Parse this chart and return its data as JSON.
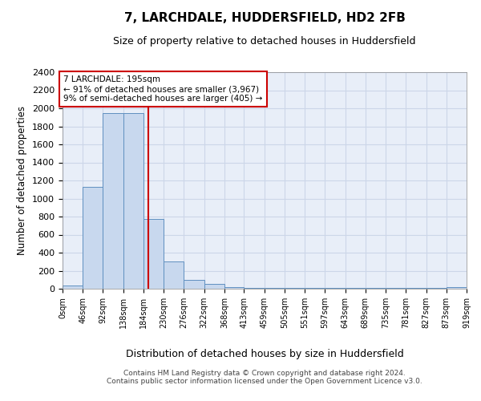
{
  "title": "7, LARCHDALE, HUDDERSFIELD, HD2 2FB",
  "subtitle": "Size of property relative to detached houses in Huddersfield",
  "xlabel": "Distribution of detached houses by size in Huddersfield",
  "ylabel": "Number of detached properties",
  "bin_edges": [
    0,
    46,
    92,
    138,
    184,
    230,
    276,
    322,
    368,
    413,
    459,
    505,
    551,
    597,
    643,
    689,
    735,
    781,
    827,
    873,
    919
  ],
  "bar_heights": [
    35,
    1130,
    1950,
    1950,
    775,
    300,
    100,
    50,
    15,
    10,
    8,
    5,
    5,
    5,
    5,
    5,
    5,
    5,
    5,
    15
  ],
  "bar_color": "#c8d8ee",
  "bar_edge_color": "#6090c0",
  "property_size": 195,
  "red_line_color": "#cc0000",
  "annotation_text": "7 LARCHDALE: 195sqm\n← 91% of detached houses are smaller (3,967)\n9% of semi-detached houses are larger (405) →",
  "annotation_box_color": "#ffffff",
  "annotation_box_edge_color": "#cc0000",
  "ylim": [
    0,
    2400
  ],
  "yticks": [
    0,
    200,
    400,
    600,
    800,
    1000,
    1200,
    1400,
    1600,
    1800,
    2000,
    2200,
    2400
  ],
  "tick_labels": [
    "0sqm",
    "46sqm",
    "92sqm",
    "138sqm",
    "184sqm",
    "230sqm",
    "276sqm",
    "322sqm",
    "368sqm",
    "413sqm",
    "459sqm",
    "505sqm",
    "551sqm",
    "597sqm",
    "643sqm",
    "689sqm",
    "735sqm",
    "781sqm",
    "827sqm",
    "873sqm",
    "919sqm"
  ],
  "footer_line1": "Contains HM Land Registry data © Crown copyright and database right 2024.",
  "footer_line2": "Contains public sector information licensed under the Open Government Licence v3.0.",
  "grid_color": "#ccd6e8",
  "background_color": "#e8eef8"
}
